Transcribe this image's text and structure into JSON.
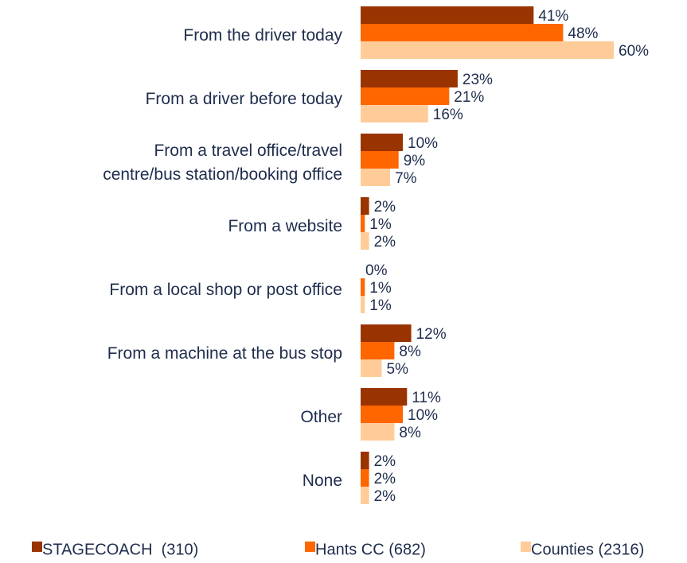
{
  "chart_data": {
    "type": "bar",
    "orientation": "horizontal",
    "categories": [
      "From the driver today",
      "From a driver before today",
      "From a travel office/travel\ncentre/bus station/booking office",
      "From a website",
      "From a local shop or post office",
      "From a machine at the bus stop",
      "Other",
      "None"
    ],
    "series": [
      {
        "name": "STAGECOACH  (310)",
        "color": "#993300",
        "values": [
          41,
          23,
          10,
          2,
          0,
          12,
          11,
          2
        ],
        "value_labels": [
          "41%",
          "23%",
          "10%",
          "2%",
          "0%",
          "12%",
          "11%",
          "2%"
        ]
      },
      {
        "name": "Hants CC (682)",
        "color": "#ff6600",
        "values": [
          48,
          21,
          9,
          1,
          1,
          8,
          10,
          2
        ],
        "value_labels": [
          "48%",
          "21%",
          "9%",
          "1%",
          "1%",
          "8%",
          "10%",
          "2%"
        ]
      },
      {
        "name": "Counties (2316)",
        "color": "#ffcc99",
        "values": [
          60,
          16,
          7,
          2,
          1,
          5,
          8,
          2
        ],
        "value_labels": [
          "60%",
          "16%",
          "7%",
          "2%",
          "1%",
          "5%",
          "8%",
          "2%"
        ]
      }
    ],
    "xlim": [
      0,
      60
    ],
    "legend": "bottom"
  }
}
